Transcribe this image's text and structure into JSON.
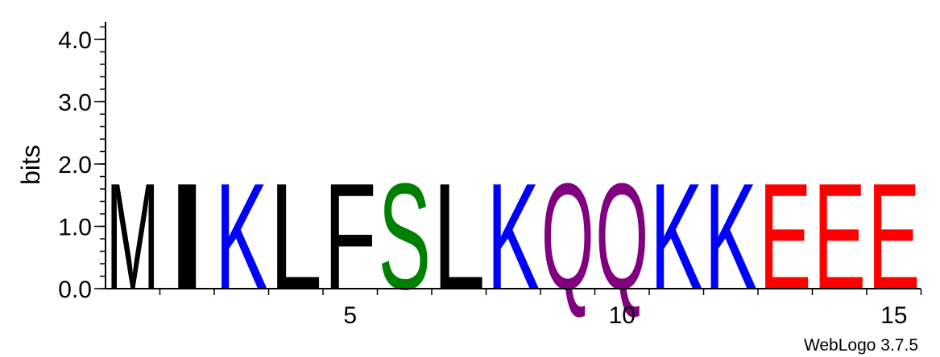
{
  "chart_data": {
    "type": "sequence-logo",
    "ylabel": "bits",
    "ylim": [
      0,
      4.3
    ],
    "yticks": [
      "0.0",
      "1.0",
      "2.0",
      "3.0",
      "4.0"
    ],
    "y_tick_values": [
      0,
      1,
      2,
      3,
      4
    ],
    "xticks": [
      "5",
      "10",
      "15"
    ],
    "x_tick_values": [
      5,
      10,
      15
    ],
    "positions": [
      {
        "pos": 1,
        "letter": "M",
        "bits": 1.75,
        "color": "#000000"
      },
      {
        "pos": 2,
        "letter": "I",
        "bits": 1.75,
        "color": "#000000"
      },
      {
        "pos": 3,
        "letter": "K",
        "bits": 1.75,
        "color": "#0000FF"
      },
      {
        "pos": 4,
        "letter": "L",
        "bits": 1.75,
        "color": "#000000"
      },
      {
        "pos": 5,
        "letter": "F",
        "bits": 1.75,
        "color": "#000000"
      },
      {
        "pos": 6,
        "letter": "S",
        "bits": 1.75,
        "color": "#008000"
      },
      {
        "pos": 7,
        "letter": "L",
        "bits": 1.75,
        "color": "#000000"
      },
      {
        "pos": 8,
        "letter": "K",
        "bits": 1.75,
        "color": "#0000FF"
      },
      {
        "pos": 9,
        "letter": "Q",
        "bits": 1.75,
        "color": "#800080"
      },
      {
        "pos": 10,
        "letter": "Q",
        "bits": 1.75,
        "color": "#800080"
      },
      {
        "pos": 11,
        "letter": "K",
        "bits": 1.75,
        "color": "#0000FF"
      },
      {
        "pos": 12,
        "letter": "K",
        "bits": 1.75,
        "color": "#0000FF"
      },
      {
        "pos": 13,
        "letter": "E",
        "bits": 1.75,
        "color": "#FF0000"
      },
      {
        "pos": 14,
        "letter": "E",
        "bits": 1.75,
        "color": "#FF0000"
      },
      {
        "pos": 15,
        "letter": "E",
        "bits": 1.75,
        "color": "#FF0000"
      }
    ]
  },
  "credit": "WebLogo 3.7.5"
}
